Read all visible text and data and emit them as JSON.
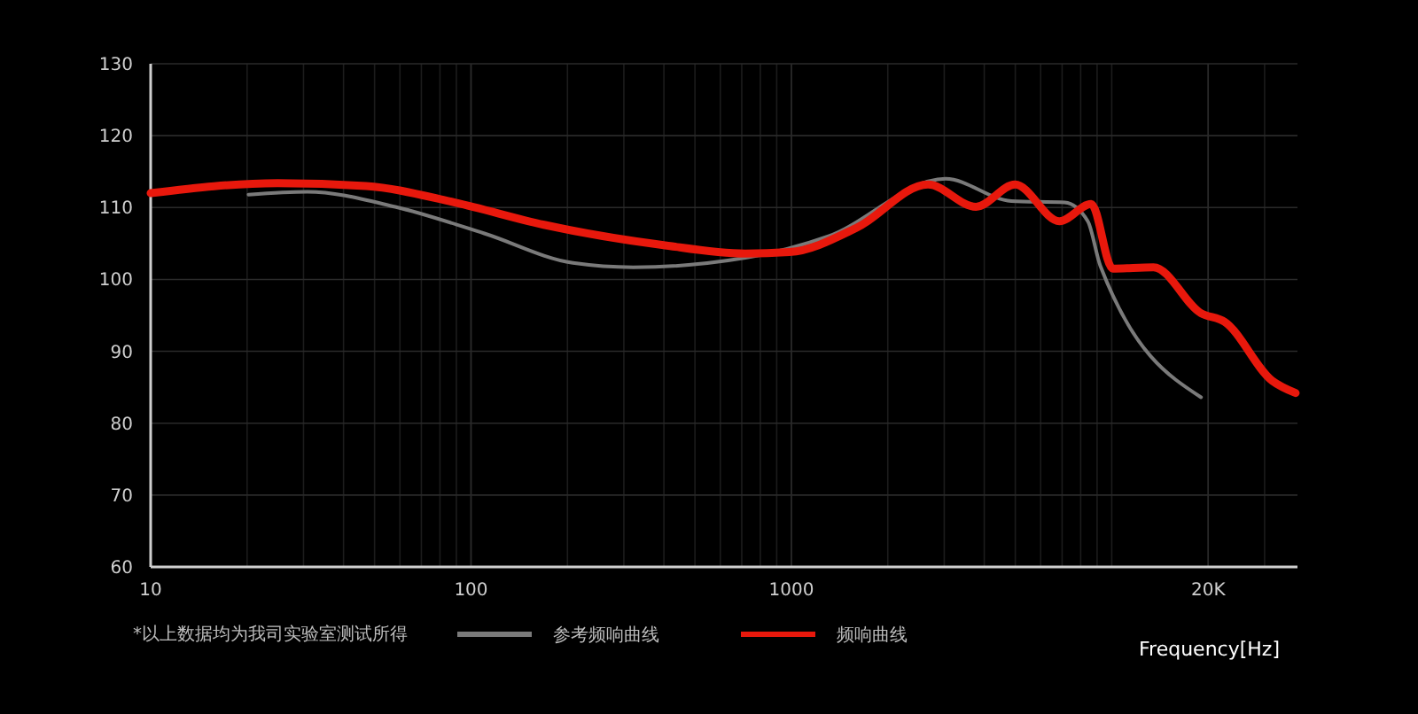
{
  "chart_data": {
    "type": "line",
    "xlabel": "Frequency[Hz]",
    "log": "x",
    "xlim": [
      10,
      38000
    ],
    "ylim": [
      60,
      130
    ],
    "xticks": [
      10,
      100,
      1000,
      {
        "value": 20000,
        "label": "20K"
      }
    ],
    "yticks": [
      60,
      70,
      80,
      90,
      100,
      110,
      120,
      130
    ],
    "grid": true,
    "legend": "bottom",
    "line_style": "solid",
    "marker": "none",
    "annotations": [
      "*以上数据均为我司实验室测试所得"
    ],
    "series": [
      {
        "name": "参考频响曲线",
        "color": "#7a7a7a",
        "x": [
          20.2,
          30.8,
          58,
          110,
          208,
          321,
          718,
          1305,
          3030,
          4860,
          7130,
          8420,
          9210,
          19000
        ],
        "values": [
          111.8,
          112.2,
          110.1,
          106.4,
          102.3,
          101.7,
          103,
          106,
          114,
          110.9,
          110.7,
          108.1,
          101.9,
          83.6
        ]
      },
      {
        "name": "频响曲线",
        "color": "#e8180c",
        "x": [
          10,
          24.9,
          47,
          89,
          169,
          395,
          718,
          985,
          1600,
          2670,
          3770,
          4990,
          6870,
          8630,
          10070,
          13500,
          19000,
          22500,
          31700,
          37500
        ],
        "values": [
          112,
          113.4,
          113,
          110.7,
          107.6,
          104.8,
          103.6,
          103.8,
          107.2,
          113.2,
          110.1,
          113.2,
          108.1,
          110.5,
          101.5,
          101.7,
          95.3,
          94.1,
          85.9,
          84.2
        ]
      }
    ]
  }
}
